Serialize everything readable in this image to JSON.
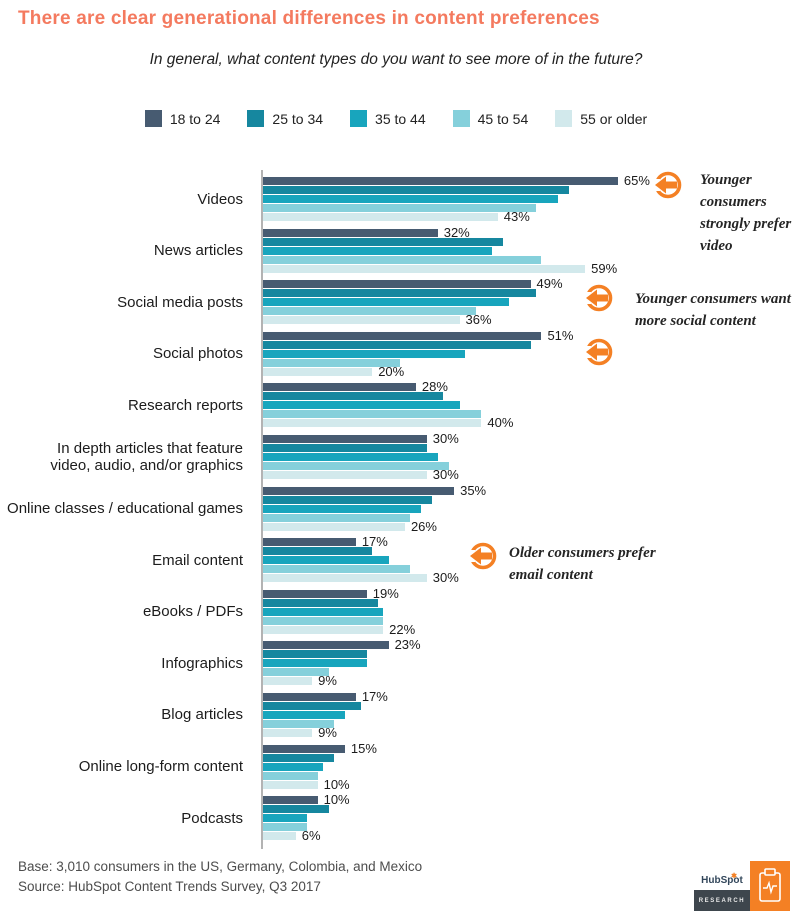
{
  "title": "There are clear generational differences in content preferences",
  "subtitle": "In general, what content types do you want to see more of in the future?",
  "colors": {
    "title": "#f47a5f",
    "annotation_orange": "#f48024",
    "axis": "#b3b3b3",
    "series": [
      "#475b71",
      "#16879f",
      "#18a5bd",
      "#85d0db",
      "#d2e9ec"
    ],
    "logo_dark": "#3e464d",
    "logo_navy": "#33475b"
  },
  "legend": [
    "18 to 24",
    "25 to 34",
    "35 to 44",
    "45 to 54",
    "55 or older"
  ],
  "chart_data": {
    "type": "bar",
    "orientation": "horizontal",
    "title": "In general, what content types do you want to see more of in the future?",
    "xlabel": "",
    "ylabel": "",
    "xlim": [
      0,
      70
    ],
    "grid": false,
    "legend_position": "top",
    "value_suffix": "%",
    "labeled_series_indices": [
      0,
      4
    ],
    "categories": [
      "Videos",
      "News articles",
      "Social media posts",
      "Social photos",
      "Research reports",
      "In depth articles that feature\nvideo, audio, and/or graphics",
      "Online classes / educational games",
      "Email content",
      "eBooks / PDFs",
      "Infographics",
      "Blog articles",
      "Online long-form content",
      "Podcasts"
    ],
    "series": [
      {
        "name": "18 to 24",
        "values": [
          65,
          32,
          49,
          51,
          28,
          30,
          35,
          17,
          19,
          23,
          17,
          15,
          10
        ]
      },
      {
        "name": "25 to 34",
        "values": [
          56,
          44,
          50,
          49,
          33,
          30,
          31,
          20,
          21,
          19,
          18,
          13,
          12
        ]
      },
      {
        "name": "35 to 44",
        "values": [
          54,
          42,
          45,
          37,
          36,
          32,
          29,
          23,
          22,
          19,
          15,
          11,
          8
        ]
      },
      {
        "name": "45 to 54",
        "values": [
          50,
          51,
          39,
          25,
          40,
          34,
          27,
          27,
          22,
          12,
          13,
          10,
          8
        ]
      },
      {
        "name": "55 or older",
        "values": [
          43,
          59,
          36,
          20,
          40,
          30,
          26,
          30,
          22,
          9,
          9,
          10,
          6
        ]
      }
    ]
  },
  "annotations": [
    {
      "text": "Younger consumers strongly prefer video"
    },
    {
      "text": "Younger consumers want more social content"
    },
    {
      "text": "Older consumers prefer email content"
    }
  ],
  "footer": {
    "base": "Base: 3,010 consumers in the US, Germany, Colombia, and Mexico",
    "source": "Source: HubSpot Content Trends Survey, Q3 2017"
  },
  "logo": {
    "brand": "HubSpot",
    "division": "RESEARCH"
  }
}
